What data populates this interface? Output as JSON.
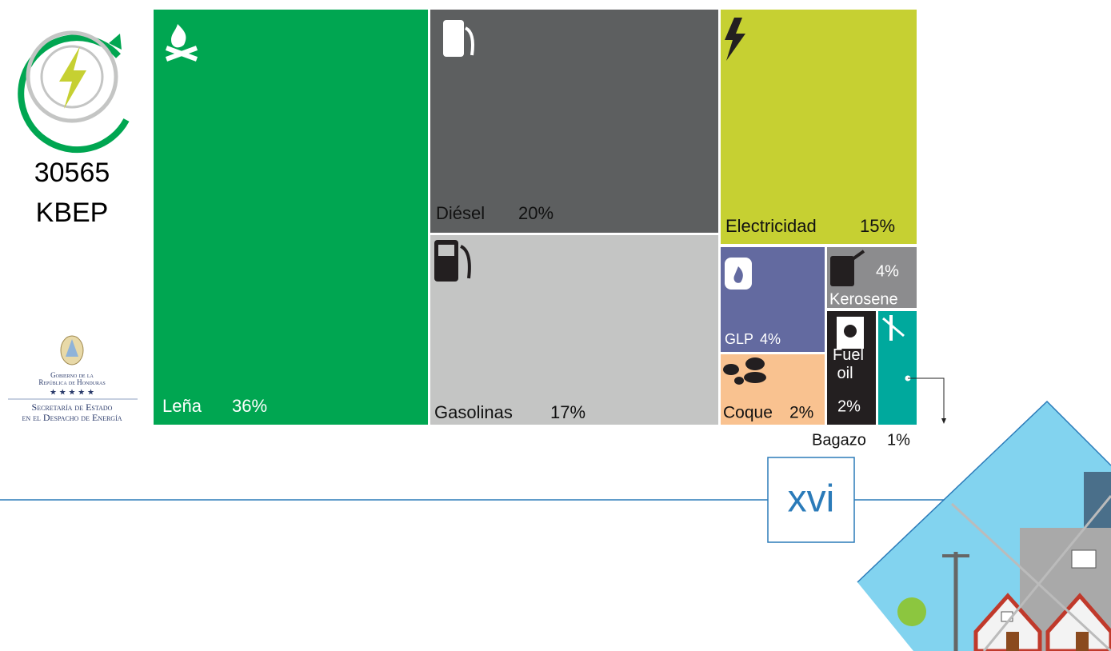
{
  "chart_data": {
    "type": "treemap",
    "total": "30565",
    "unit": "KBEP",
    "categories": [
      "Leña",
      "Diésel",
      "Gasolinas",
      "Electricidad",
      "GLP",
      "Kerosene",
      "Coque",
      "Fuel oil",
      "Bagazo"
    ],
    "values": [
      36,
      20,
      17,
      15,
      4,
      4,
      2,
      2,
      1
    ],
    "value_labels": [
      "36%",
      "20%",
      "17%",
      "15%",
      "4%",
      "4%",
      "2%",
      "2%",
      "1%"
    ],
    "colors": [
      "#00a651",
      "#5d5f60",
      "#c4c5c4",
      "#c6d032",
      "#636aa0",
      "#8c8c8e",
      "#f9c290",
      "#231f20",
      "#00a99d"
    ]
  },
  "logo": {
    "lines": [
      "Gobierno de la",
      "República de Honduras",
      "Secretaría de Estado",
      "en el Despacho de Energía"
    ]
  },
  "page_number": "xvi"
}
